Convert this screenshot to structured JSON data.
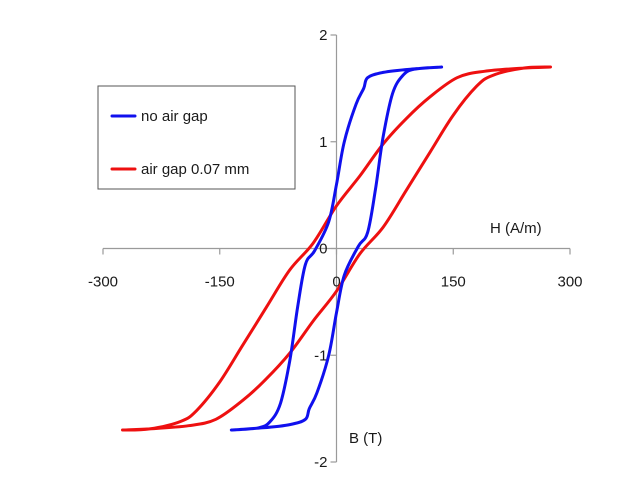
{
  "chart_data": {
    "type": "line",
    "title": "",
    "xlabel": "H (A/m)",
    "ylabel": "B (T)",
    "xlim": [
      -300,
      300
    ],
    "ylim": [
      -2,
      2
    ],
    "x_ticks": [
      {
        "value": -300,
        "label": "-300"
      },
      {
        "value": -150,
        "label": "-150"
      },
      {
        "value": 0,
        "label": "0"
      },
      {
        "value": 150,
        "label": "150"
      },
      {
        "value": 300,
        "label": "300"
      }
    ],
    "y_ticks": [
      {
        "value": 2,
        "label": "2"
      },
      {
        "value": 1,
        "label": "1"
      },
      {
        "value": 0,
        "label": "0"
      },
      {
        "value": -1,
        "label": "-1"
      },
      {
        "value": -2,
        "label": "-2"
      }
    ],
    "grid": false,
    "legend": {
      "placement": "top-left"
    },
    "series": [
      {
        "name": "no air gap",
        "color": "#1010ee",
        "points": [
          [
            135,
            1.7
          ],
          [
            100,
            1.68
          ],
          [
            85,
            1.62
          ],
          [
            72,
            1.45
          ],
          [
            60,
            1.05
          ],
          [
            50,
            0.55
          ],
          [
            40,
            0.15
          ],
          [
            28,
            0.02
          ],
          [
            10,
            -0.25
          ],
          [
            0,
            -0.6
          ],
          [
            -10,
            -1.0
          ],
          [
            -25,
            -1.35
          ],
          [
            -35,
            -1.5
          ],
          [
            -40,
            -1.6
          ],
          [
            -60,
            -1.65
          ],
          [
            -95,
            -1.68
          ],
          [
            -135,
            -1.7
          ],
          [
            -100,
            -1.68
          ],
          [
            -85,
            -1.62
          ],
          [
            -72,
            -1.45
          ],
          [
            -60,
            -1.05
          ],
          [
            -50,
            -0.55
          ],
          [
            -40,
            -0.15
          ],
          [
            -28,
            -0.02
          ],
          [
            -10,
            0.25
          ],
          [
            0,
            0.6
          ],
          [
            10,
            1.0
          ],
          [
            25,
            1.35
          ],
          [
            35,
            1.5
          ],
          [
            40,
            1.6
          ],
          [
            60,
            1.65
          ],
          [
            95,
            1.68
          ],
          [
            135,
            1.7
          ]
        ]
      },
      {
        "name": "air gap 0.07 mm",
        "color": "#ee1010",
        "points": [
          [
            275,
            1.7
          ],
          [
            240,
            1.69
          ],
          [
            200,
            1.62
          ],
          [
            180,
            1.52
          ],
          [
            150,
            1.25
          ],
          [
            120,
            0.9
          ],
          [
            90,
            0.55
          ],
          [
            60,
            0.2
          ],
          [
            30,
            -0.05
          ],
          [
            0,
            -0.4
          ],
          [
            -30,
            -0.68
          ],
          [
            -60,
            -0.98
          ],
          [
            -90,
            -1.22
          ],
          [
            -120,
            -1.42
          ],
          [
            -155,
            -1.6
          ],
          [
            -190,
            -1.66
          ],
          [
            -240,
            -1.69
          ],
          [
            -275,
            -1.7
          ],
          [
            -240,
            -1.69
          ],
          [
            -200,
            -1.62
          ],
          [
            -180,
            -1.52
          ],
          [
            -150,
            -1.25
          ],
          [
            -120,
            -0.9
          ],
          [
            -90,
            -0.55
          ],
          [
            -60,
            -0.2
          ],
          [
            -30,
            0.05
          ],
          [
            0,
            0.4
          ],
          [
            30,
            0.68
          ],
          [
            60,
            0.98
          ],
          [
            90,
            1.22
          ],
          [
            120,
            1.42
          ],
          [
            155,
            1.6
          ],
          [
            190,
            1.66
          ],
          [
            240,
            1.69
          ],
          [
            275,
            1.7
          ]
        ]
      }
    ]
  }
}
